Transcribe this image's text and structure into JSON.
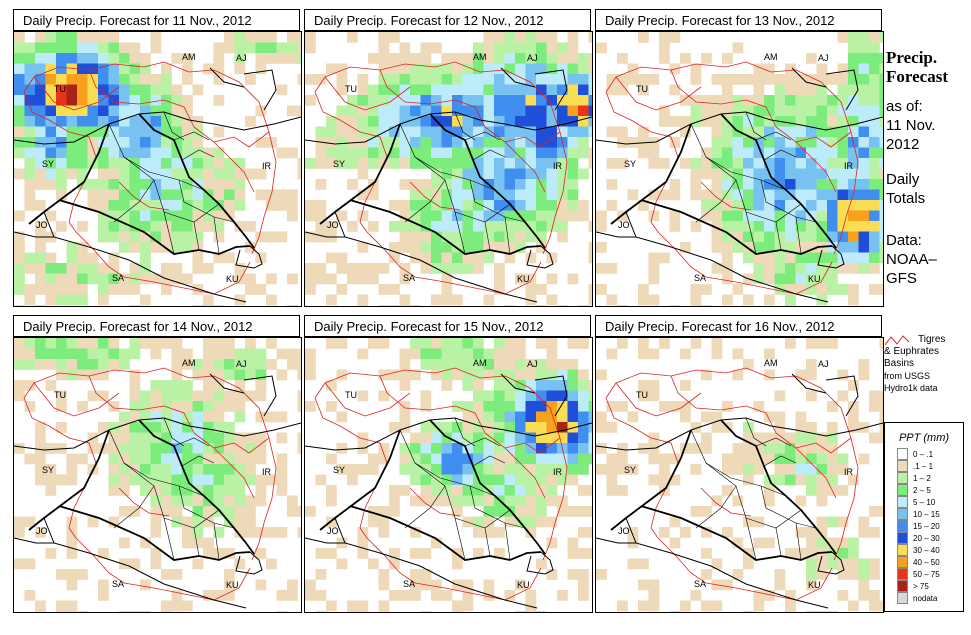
{
  "panels": [
    {
      "title": "Daily Precip. Forecast for  11 Nov., 2012",
      "day": 0
    },
    {
      "title": "Daily Precip. Forecast for  12 Nov., 2012",
      "day": 1
    },
    {
      "title": "Daily Precip. Forecast for  13 Nov., 2012",
      "day": 2
    },
    {
      "title": "Daily Precip. Forecast for  14 Nov., 2012",
      "day": 3
    },
    {
      "title": "Daily Precip. Forecast for  15 Nov., 2012",
      "day": 4
    },
    {
      "title": "Daily Precip. Forecast for  16 Nov., 2012",
      "day": 5
    }
  ],
  "map_labels": {
    "tu": "TU",
    "am": "AM",
    "aj": "AJ",
    "sy": "SY",
    "ir": "IR",
    "jo": "JO",
    "sa": "SA",
    "ku": "KU"
  },
  "side": {
    "title_line1": "Precip.",
    "title_line2": "Forecast",
    "asof": "as of:",
    "date_line1": "11 Nov.",
    "date_line2": "2012",
    "daily_line1": "Daily",
    "daily_line2": "Totals",
    "data_line1": "Data:",
    "data_line2": "NOAA–",
    "data_line3": "GFS"
  },
  "basin_legend": {
    "line1": "Tigres",
    "line2": "& Euphrates",
    "line3": "Basins",
    "line4": "from USGS",
    "line5": "Hydro1k data"
  },
  "ppt_legend": {
    "title": "PPT (mm)",
    "classes": [
      {
        "label": "0 – .1",
        "color": "#ffffff"
      },
      {
        "label": ".1 – 1",
        "color": "#eed9b9"
      },
      {
        "label": "1 – 2",
        "color": "#b9f2a4"
      },
      {
        "label": "2 – 5",
        "color": "#7ced7c"
      },
      {
        "label": "5 – 10",
        "color": "#bcecfa"
      },
      {
        "label": "10 – 15",
        "color": "#78c2f2"
      },
      {
        "label": "15 – 20",
        "color": "#3f8ef0"
      },
      {
        "label": "20 – 30",
        "color": "#1f4fd8"
      },
      {
        "label": "30 – 40",
        "color": "#f9de55"
      },
      {
        "label": "40 – 50",
        "color": "#f7a11c"
      },
      {
        "label": "50 – 75",
        "color": "#e83418"
      },
      {
        "label": "> 75",
        "color": "#a8241a"
      },
      {
        "label": "nodata",
        "color": "#d8d8d8"
      }
    ]
  },
  "colors": {
    "basin": "#e02020",
    "border": "#000000"
  }
}
